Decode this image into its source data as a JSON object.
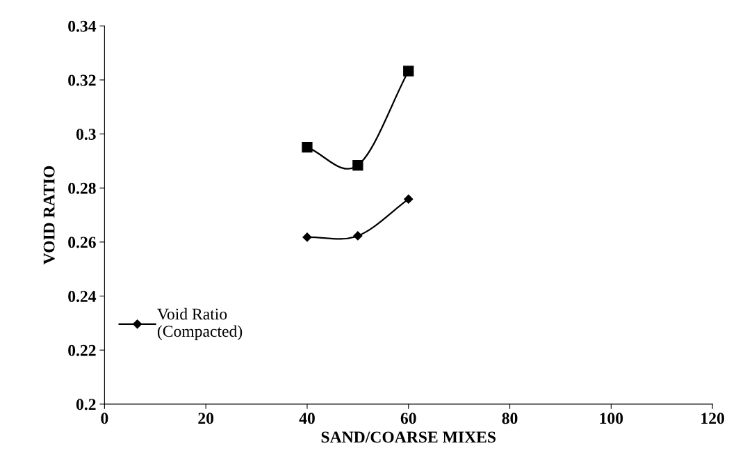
{
  "chart_data": {
    "type": "line",
    "xlabel": "SAND/COARSE MIXES",
    "ylabel": "VOID RATIO",
    "x": [
      40,
      50,
      60
    ],
    "series": [
      {
        "name": "Void Ratio\n(Compacted)",
        "color": "#000000",
        "marker": "diamond",
        "values": [
          0.2618,
          0.2623,
          0.2759
        ]
      },
      {
        "color": "#000000",
        "marker": "square",
        "values": [
          0.2951,
          0.2884,
          0.3233
        ]
      }
    ],
    "xlim": [
      0,
      120
    ],
    "xticks": [
      0,
      20,
      40,
      60,
      80,
      100,
      120
    ],
    "ylim": [
      0.2,
      0.34
    ],
    "yticks": [
      0.2,
      0.22,
      0.24,
      0.26,
      0.28,
      0.3,
      0.32,
      0.34
    ],
    "grid": false,
    "legend": "bottom left",
    "line_style": "solid"
  }
}
